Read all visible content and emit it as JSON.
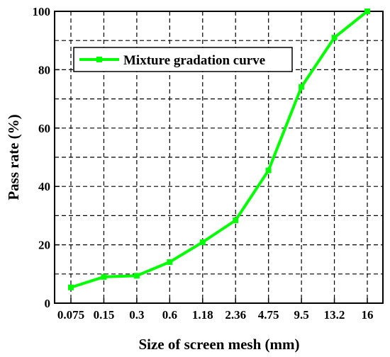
{
  "chart_data": {
    "type": "line",
    "title": "",
    "xlabel": "Size of screen mesh (mm)",
    "ylabel": "Pass rate (%)",
    "categories": [
      "0.075",
      "0.15",
      "0.3",
      "0.6",
      "1.18",
      "2.36",
      "4.75",
      "9.5",
      "13.2",
      "16"
    ],
    "x_scale": "categorical",
    "ylim": [
      0,
      100
    ],
    "yticks": [
      0,
      20,
      40,
      60,
      80,
      100
    ],
    "grid": true,
    "legend_position": "top-left",
    "series": [
      {
        "name": "Mixture gradation curve",
        "color": "#00ff00",
        "marker": "square",
        "values": [
          5.4,
          9.0,
          9.4,
          14.1,
          20.9,
          28.4,
          45.5,
          74.1,
          91.0,
          100
        ]
      }
    ]
  }
}
